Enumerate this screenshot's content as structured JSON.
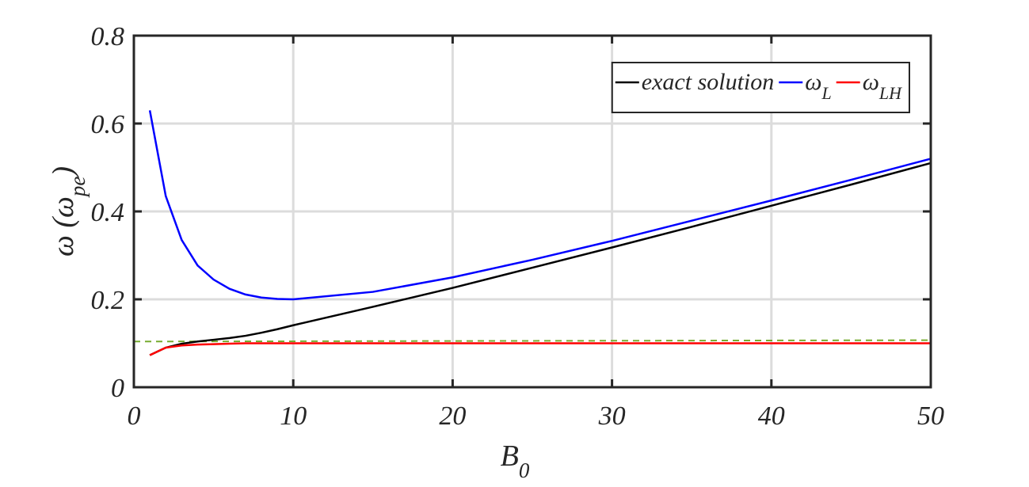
{
  "chart_data": {
    "type": "line",
    "x_label": [
      "B",
      "0"
    ],
    "y_label": [
      "ω (ω",
      "pe",
      ")"
    ],
    "x": [
      1,
      2,
      3,
      4,
      5,
      6,
      7,
      8,
      9,
      10,
      15,
      20,
      25,
      30,
      35,
      40,
      45,
      50
    ],
    "series": [
      {
        "name": "exact solution",
        "color": "#000000",
        "values": [
          0.073,
          0.09,
          0.099,
          0.104,
          0.108,
          0.112,
          0.117,
          0.124,
          0.132,
          0.141,
          0.183,
          0.226,
          0.272,
          0.318,
          0.365,
          0.413,
          0.461,
          0.51
        ]
      },
      {
        "name": [
          "ω",
          "L"
        ],
        "color": "#0000ff",
        "values": [
          0.63,
          0.435,
          0.335,
          0.277,
          0.245,
          0.224,
          0.211,
          0.204,
          0.201,
          0.2,
          0.217,
          0.25,
          0.29,
          0.333,
          0.379,
          0.425,
          0.472,
          0.52
        ]
      },
      {
        "name": [
          "ω",
          "LH"
        ],
        "color": "#ff0000",
        "values": [
          0.073,
          0.09,
          0.095,
          0.097,
          0.098,
          0.099,
          0.1,
          0.1,
          0.1,
          0.1,
          0.1,
          0.1,
          0.1,
          0.1,
          0.1,
          0.1,
          0.1,
          0.1
        ]
      }
    ],
    "dashed_line": {
      "x": [
        0,
        50
      ],
      "values": [
        0.104,
        0.107
      ],
      "color": "#77ac30"
    },
    "xlim": [
      0,
      50
    ],
    "xticks": [
      0,
      10,
      20,
      30,
      40,
      50
    ],
    "ylim": [
      0,
      0.8
    ],
    "yticks": [
      0,
      0.2,
      0.4,
      0.6,
      0.8
    ],
    "grid": true,
    "legend": "upper right"
  }
}
